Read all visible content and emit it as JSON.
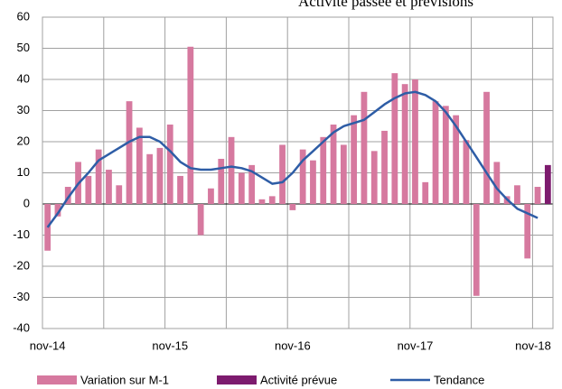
{
  "chart_data": {
    "type": "bar_line",
    "title": "Activité passée et prévisions",
    "categories": [
      "nov-14",
      null,
      null,
      null,
      null,
      null,
      null,
      null,
      null,
      null,
      null,
      null,
      "nov-15",
      null,
      null,
      null,
      null,
      null,
      null,
      null,
      null,
      null,
      null,
      null,
      "nov-16",
      null,
      null,
      null,
      null,
      null,
      null,
      null,
      null,
      null,
      null,
      null,
      "nov-17",
      null,
      null,
      null,
      null,
      null,
      null,
      null,
      null,
      null,
      null,
      null,
      "nov-18",
      null
    ],
    "series": [
      {
        "name": "Variation sur M-1",
        "kind": "bar",
        "color": "#d6799f",
        "values": [
          -15,
          -4,
          5.5,
          13.5,
          9,
          17.5,
          11,
          6,
          33,
          24.5,
          16,
          18,
          25.5,
          9,
          50.5,
          -10,
          5,
          14.5,
          21.5,
          10,
          12.5,
          1.5,
          2.5,
          19,
          -2,
          17.5,
          14,
          21.5,
          25.5,
          19,
          28.5,
          36,
          17,
          23.5,
          42,
          38.5,
          40,
          7,
          33,
          31.5,
          28.5,
          20.5,
          -29.5,
          36,
          13.5,
          2.5,
          6,
          -17.5,
          5.5,
          null
        ]
      },
      {
        "name": "Activité prévue",
        "kind": "bar",
        "color": "#7d1b6e",
        "values": [
          null,
          null,
          null,
          null,
          null,
          null,
          null,
          null,
          null,
          null,
          null,
          null,
          null,
          null,
          null,
          null,
          null,
          null,
          null,
          null,
          null,
          null,
          null,
          null,
          null,
          null,
          null,
          null,
          null,
          null,
          null,
          null,
          null,
          null,
          null,
          null,
          null,
          null,
          null,
          null,
          null,
          null,
          null,
          null,
          null,
          null,
          null,
          null,
          null,
          12.5
        ]
      },
      {
        "name": "Tendance",
        "kind": "line",
        "color": "#2e5da6",
        "values": [
          -7.5,
          -3,
          2,
          6.5,
          10,
          14,
          16,
          18,
          20,
          21.5,
          21.5,
          20,
          17,
          13.5,
          11.5,
          11,
          11,
          11.5,
          12,
          11.5,
          10.5,
          8.5,
          6.5,
          7,
          10,
          14,
          17,
          20,
          23,
          25,
          26,
          27,
          29.5,
          32,
          34,
          35.5,
          36,
          35,
          33,
          29.5,
          25,
          20,
          15,
          10,
          5,
          1.5,
          -1.5,
          -3,
          -4.5,
          null
        ]
      }
    ],
    "ylim": [
      -40,
      60
    ],
    "yticks": [
      -40,
      -30,
      -20,
      -10,
      0,
      10,
      20,
      30,
      40,
      50,
      60
    ],
    "grid": true
  }
}
